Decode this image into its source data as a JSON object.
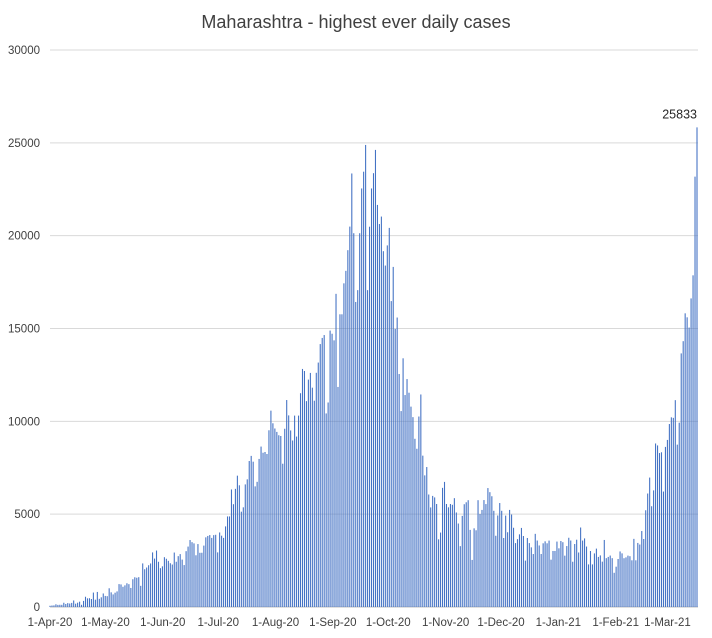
{
  "chart_data": {
    "type": "bar",
    "title": "Maharashtra - highest ever daily cases",
    "xlabel": "",
    "ylabel": "",
    "ylim": [
      0,
      30000
    ],
    "y_ticks": [
      "0",
      "5000",
      "10000",
      "15000",
      "20000",
      "25000",
      "30000"
    ],
    "x_range": [
      "2020-04-01",
      "2021-03-17"
    ],
    "x_ticks": [
      {
        "date": "2020-04-01",
        "label": "1-Apr-20"
      },
      {
        "date": "2020-05-01",
        "label": "1-May-20"
      },
      {
        "date": "2020-06-01",
        "label": "1-Jun-20"
      },
      {
        "date": "2020-07-01",
        "label": "1-Jul-20"
      },
      {
        "date": "2020-08-01",
        "label": "1-Aug-20"
      },
      {
        "date": "2020-09-01",
        "label": "1-Sep-20"
      },
      {
        "date": "2020-10-01",
        "label": "1-Oct-20"
      },
      {
        "date": "2020-11-01",
        "label": "1-Nov-20"
      },
      {
        "date": "2020-12-01",
        "label": "1-Dec-20"
      },
      {
        "date": "2021-01-01",
        "label": "1-Jan-21"
      },
      {
        "date": "2021-02-01",
        "label": "1-Feb-21"
      },
      {
        "date": "2021-03-01",
        "label": "1-Mar-21"
      }
    ],
    "grid": true,
    "legend": "none",
    "bar_color": "#4472c4",
    "peak_label": "25833",
    "series": [
      {
        "values": [
          67,
          81,
          88,
          145,
          113,
          120,
          117,
          229,
          162,
          210,
          187,
          221,
          352,
          178,
          232,
          286,
          118,
          328,
          552,
          466,
          472,
          431,
          778,
          394,
          811,
          440,
          522,
          729,
          597,
          583,
          1008,
          790,
          678,
          771,
          841,
          1233,
          1216,
          1089,
          1165,
          1278,
          1230,
          1026,
          1495,
          1602,
          1576,
          1606,
          1140,
          2347,
          2033,
          2127,
          2250,
          2345,
          2940,
          2608,
          3041,
          2436,
          2091,
          2190,
          2682,
          2598,
          2487,
          2358,
          2287,
          2933,
          2436,
          2739,
          2849,
          2553,
          2259,
          3007,
          3254,
          3607,
          3493,
          3427,
          2786,
          3390,
          2919,
          2922,
          3307,
          3752,
          3827,
          3874,
          3721,
          3870,
          3890,
          2942,
          4015,
          3841,
          3722,
          4341,
          4878,
          4878,
          6330,
          5537,
          6364,
          7074,
          6555,
          5134,
          5368,
          6603,
          6875,
          7862,
          8139,
          7827,
          6497,
          6741,
          7975,
          8641,
          8308,
          8348,
          8240,
          9518,
          10576,
          9895,
          9615,
          9431,
          9251,
          9211,
          7717,
          9601,
          11147,
          10320,
          9509,
          8968,
          10309,
          9180,
          10309,
          11514,
          12822,
          12712,
          11088,
          12248,
          12608,
          11813,
          11111,
          12614,
          13165,
          14161,
          14492,
          14647,
          10425,
          11015,
          14888,
          14718,
          14361,
          16867,
          11852,
          15765,
          15765,
          17433,
          18105,
          19218,
          20489,
          23350,
          20131,
          16429,
          17066,
          20131,
          22543,
          23446,
          24886,
          17066,
          20482,
          22543,
          23365,
          24619,
          21656,
          20627,
          21029,
          19164,
          18390,
          19476,
          20419,
          16476,
          18317,
          14976,
          15591,
          12548,
          10552,
          13395,
          11416,
          12276,
          11541,
          10792,
          10226,
          9060,
          8522,
          10259,
          11447,
          8151,
          7089,
          7539,
          6059,
          5363,
          5984,
          5902,
          5548,
          3645,
          4009,
          6417,
          6738,
          5548,
          5369,
          5548,
          5505,
          5862,
          5092,
          4496,
          3277,
          4907,
          5535,
          5640,
          5752,
          4153,
          2535,
          4237,
          4132,
          5753,
          5011,
          5229,
          5760,
          5544,
          6406,
          6185,
          5965,
          5182,
          3837,
          4930,
          5600,
          5182,
          3717,
          4922,
          4026,
          5229,
          4981,
          4268,
          3442,
          3654,
          3913,
          4259,
          3824,
          2498,
          3717,
          3442,
          3212,
          2853,
          3940,
          3580,
          3314,
          2854,
          3431,
          3537,
          3431,
          3577,
          2549,
          3018,
          3018,
          3524,
          3160,
          3556,
          3490,
          2765,
          3282,
          3729,
          3581,
          2438,
          3392,
          3624,
          2936,
          4282,
          3579,
          3695,
          3256,
          2294,
          3015,
          2294,
          2886,
          3145,
          2697,
          2779,
          2443,
          3611,
          2630,
          2697,
          2771,
          2630,
          1842,
          2171,
          2585,
          2992,
          2889,
          2628,
          2673,
          2768,
          2736,
          2515,
          3670,
          2515,
          3451,
          3365,
          4092,
          3663,
          5210,
          6112,
          6971,
          5427,
          6281,
          8807,
          8702,
          8293,
          8333,
          6218,
          8623,
          8998,
          9855,
          10216,
          10187,
          11141,
          8744,
          9927,
          13659,
          14317,
          15817,
          15602,
          15051,
          16620,
          17864,
          23179,
          25833
        ]
      }
    ]
  }
}
